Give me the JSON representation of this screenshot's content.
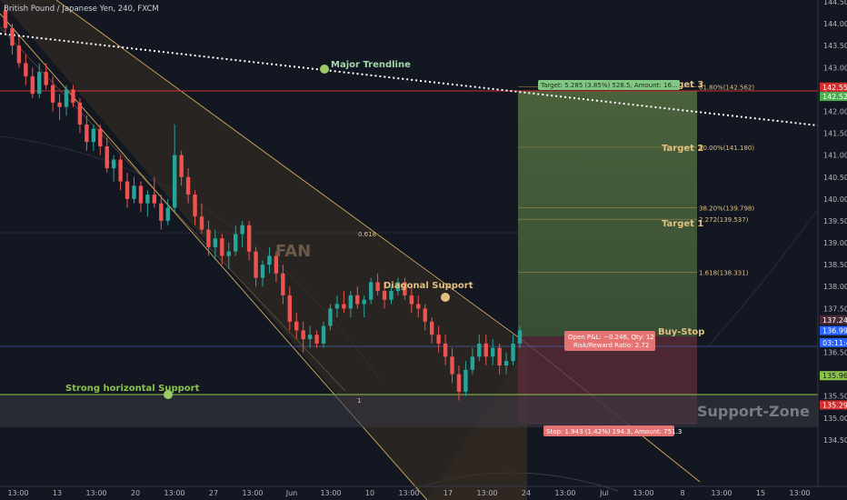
{
  "header": {
    "title": "British Pound / Japanese Yen, 240, FXCM"
  },
  "colors": {
    "background": "#131722",
    "candle_up": "#26a69a",
    "candle_down": "#ef5350",
    "fan": "#e0b060",
    "resistance_line": "#d32f2f",
    "support_line": "#8bc34a",
    "target_zone": "#4a6b3c",
    "stop_zone": "#5a2c38",
    "trendline": "#ffffff"
  },
  "annotations": {
    "major_trendline": "Major Trendline",
    "diagonal_support": "Diagonal Support",
    "strong_support": "Strong horizontal Support",
    "fan": "FAN",
    "support_zone": "Support-Zone",
    "buy_stop": "Buy-Stop",
    "target1": "Target 1",
    "target2": "Target 2",
    "target3": "Target 3",
    "fan_0618": "0.618",
    "fan_1": "1"
  },
  "position_labels": {
    "target": "Target: 5.285 (3.85%) 528.5, Amount: 16…",
    "stop": "Stop: 1.943 (1.42%) 194.3, Amount: 751.3",
    "open_pl": "Open P&L: −0.246, Qty: 12",
    "risk_reward": "Risk/Reward Ratio: 2.72"
  },
  "fib_levels": [
    {
      "label": "61.80%(142.562)",
      "price": 142.562
    },
    {
      "label": "50.00%(141.180)",
      "price": 141.18
    },
    {
      "label": "38.20%(139.798)",
      "price": 139.798
    },
    {
      "label": "2.272(139.537)",
      "price": 139.537
    },
    {
      "label": "1.618(138.331)",
      "price": 138.331
    }
  ],
  "price_tags": [
    {
      "value": "142.554",
      "price": 142.554,
      "color": "#d32f2f",
      "text_color": "#ffffff"
    },
    {
      "value": "142.526",
      "price": 142.34,
      "color": "#4caf50",
      "text_color": "#ffffff"
    },
    {
      "value": "137.241",
      "price": 137.241,
      "color": "#4c2a35",
      "text_color": "#ffffff"
    },
    {
      "value": "136.995",
      "price": 136.995,
      "color": "#2962ff",
      "text_color": "#ffffff"
    },
    {
      "value": "03:11:44",
      "price": 136.72,
      "color": "#2962ff",
      "text_color": "#ffffff"
    },
    {
      "value": "135.967",
      "price": 135.967,
      "color": "#8bc34a",
      "text_color": "#131722"
    },
    {
      "value": "135.298",
      "price": 135.298,
      "color": "#d32f2f",
      "text_color": "#ffffff"
    }
  ],
  "chart_data": {
    "type": "candlestick",
    "title": "British Pound / Japanese Yen, 240, FXCM",
    "ylim": [
      134.0,
      144.5
    ],
    "y_ticks": [
      "134.500",
      "135.000",
      "135.500",
      "136.000",
      "136.500",
      "137.000",
      "137.500",
      "138.000",
      "138.500",
      "139.000",
      "139.500",
      "140.000",
      "140.500",
      "141.000",
      "141.500",
      "142.000",
      "142.500",
      "143.000",
      "143.500",
      "144.000",
      "144.500"
    ],
    "x_ticks": [
      "13:00",
      "13",
      "13:00",
      "20",
      "13:00",
      "27",
      "13:00",
      "Jun",
      "13:00",
      "10",
      "13:00",
      "17",
      "13:00",
      "24",
      "13:00",
      "Jul",
      "13:00",
      "8",
      "13:00",
      "15",
      "13:00"
    ],
    "grid": false,
    "ohlc": [
      [
        144.3,
        144.4,
        143.8,
        143.9
      ],
      [
        143.9,
        144.0,
        143.3,
        143.5
      ],
      [
        143.5,
        143.7,
        143.0,
        143.1
      ],
      [
        143.1,
        143.3,
        142.6,
        142.8
      ],
      [
        142.8,
        143.0,
        142.3,
        142.4
      ],
      [
        142.4,
        143.1,
        142.3,
        142.9
      ],
      [
        142.9,
        143.1,
        142.5,
        142.6
      ],
      [
        142.6,
        142.8,
        142.0,
        142.2
      ],
      [
        142.2,
        142.4,
        141.8,
        142.1
      ],
      [
        142.1,
        142.6,
        141.9,
        142.5
      ],
      [
        142.5,
        142.6,
        142.1,
        142.2
      ],
      [
        142.2,
        142.3,
        141.5,
        141.7
      ],
      [
        141.7,
        141.9,
        141.1,
        141.3
      ],
      [
        141.3,
        141.7,
        141.1,
        141.6
      ],
      [
        141.6,
        141.7,
        141.0,
        141.2
      ],
      [
        141.2,
        141.4,
        140.6,
        140.7
      ],
      [
        140.7,
        141.0,
        140.4,
        140.9
      ],
      [
        140.9,
        141.0,
        140.2,
        140.4
      ],
      [
        140.4,
        140.6,
        139.8,
        140.0
      ],
      [
        140.0,
        140.5,
        139.9,
        140.3
      ],
      [
        140.3,
        140.4,
        139.7,
        139.9
      ],
      [
        139.9,
        140.2,
        139.6,
        140.1
      ],
      [
        140.1,
        140.5,
        139.8,
        139.9
      ],
      [
        139.9,
        140.1,
        139.3,
        139.5
      ],
      [
        139.5,
        140.0,
        139.4,
        139.8
      ],
      [
        139.8,
        141.7,
        139.7,
        141.0
      ],
      [
        141.0,
        141.1,
        140.3,
        140.5
      ],
      [
        140.5,
        140.7,
        139.9,
        140.1
      ],
      [
        140.1,
        140.2,
        139.4,
        139.6
      ],
      [
        139.6,
        139.9,
        139.2,
        139.3
      ],
      [
        139.3,
        139.5,
        138.7,
        138.9
      ],
      [
        138.9,
        139.3,
        138.6,
        139.1
      ],
      [
        139.1,
        139.2,
        138.5,
        138.7
      ],
      [
        138.7,
        139.0,
        138.4,
        138.8
      ],
      [
        138.8,
        139.4,
        138.7,
        139.2
      ],
      [
        139.2,
        139.5,
        138.9,
        139.4
      ],
      [
        139.4,
        139.5,
        138.6,
        138.8
      ],
      [
        138.8,
        138.9,
        138.0,
        138.2
      ],
      [
        138.2,
        138.6,
        138.0,
        138.5
      ],
      [
        138.5,
        138.9,
        138.3,
        138.7
      ],
      [
        138.7,
        138.8,
        138.1,
        138.3
      ],
      [
        138.3,
        138.5,
        137.6,
        137.8
      ],
      [
        137.8,
        138.0,
        137.0,
        137.2
      ],
      [
        137.2,
        137.4,
        136.8,
        137.0
      ],
      [
        137.0,
        137.2,
        136.5,
        136.8
      ],
      [
        136.8,
        137.1,
        136.6,
        136.9
      ],
      [
        136.9,
        137.0,
        136.6,
        136.7
      ],
      [
        136.7,
        137.2,
        136.6,
        137.1
      ],
      [
        137.1,
        137.6,
        137.0,
        137.5
      ],
      [
        137.5,
        137.8,
        137.3,
        137.6
      ],
      [
        137.6,
        137.9,
        137.4,
        137.5
      ],
      [
        137.5,
        137.9,
        137.3,
        137.8
      ],
      [
        137.8,
        138.0,
        137.5,
        137.6
      ],
      [
        137.6,
        137.8,
        137.3,
        137.7
      ],
      [
        137.7,
        138.2,
        137.6,
        138.1
      ],
      [
        138.1,
        138.3,
        137.8,
        137.9
      ],
      [
        137.9,
        138.1,
        137.5,
        137.7
      ],
      [
        137.7,
        138.0,
        137.6,
        137.9
      ],
      [
        137.9,
        138.2,
        137.8,
        138.1
      ],
      [
        138.1,
        138.2,
        137.7,
        137.8
      ],
      [
        137.8,
        138.0,
        137.4,
        137.6
      ],
      [
        137.6,
        137.8,
        137.3,
        137.5
      ],
      [
        137.5,
        137.6,
        137.0,
        137.2
      ],
      [
        137.2,
        137.3,
        136.7,
        136.9
      ],
      [
        136.9,
        137.1,
        136.5,
        136.7
      ],
      [
        136.7,
        136.9,
        136.2,
        136.4
      ],
      [
        136.4,
        136.6,
        135.8,
        136.0
      ],
      [
        136.0,
        136.2,
        135.4,
        135.6
      ],
      [
        135.6,
        136.3,
        135.5,
        136.1
      ],
      [
        136.1,
        136.6,
        136.0,
        136.4
      ],
      [
        136.4,
        136.9,
        136.3,
        136.7
      ],
      [
        136.7,
        136.9,
        136.2,
        136.4
      ],
      [
        136.4,
        136.8,
        136.2,
        136.6
      ],
      [
        136.6,
        136.7,
        136.0,
        136.2
      ],
      [
        136.2,
        136.5,
        136.0,
        136.3
      ],
      [
        136.3,
        136.9,
        136.2,
        136.7
      ],
      [
        136.7,
        137.1,
        136.6,
        137.0
      ]
    ],
    "fan_label_0618": "0.618",
    "fan_label_1": "1"
  }
}
